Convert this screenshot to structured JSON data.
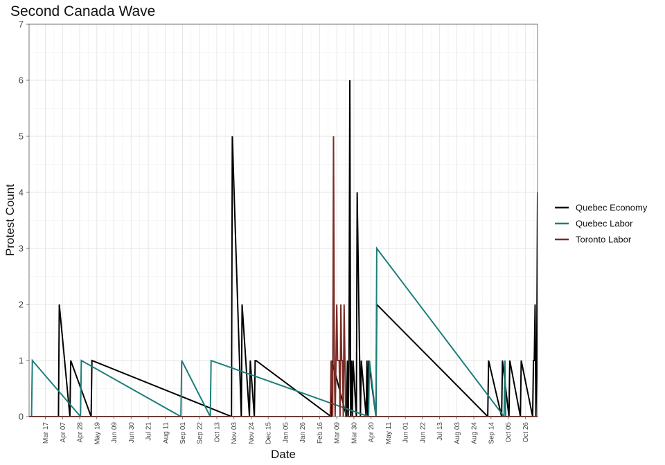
{
  "chart_data": {
    "type": "line",
    "title": "Second Canada Wave",
    "xlabel": "Date",
    "ylabel": "Protest Count",
    "ylim": [
      0,
      7
    ],
    "yticks": [
      0,
      1,
      2,
      3,
      4,
      5,
      6,
      7
    ],
    "xlim": [
      "2012-02-26",
      "2013-11-10"
    ],
    "xticks": [
      {
        "date": "2012-03-17",
        "label": "Mar 17"
      },
      {
        "date": "2012-04-07",
        "label": "Apr 07"
      },
      {
        "date": "2012-04-28",
        "label": "Apr 28"
      },
      {
        "date": "2012-05-19",
        "label": "May 19"
      },
      {
        "date": "2012-06-09",
        "label": "Jun 09"
      },
      {
        "date": "2012-06-30",
        "label": "Jun 30"
      },
      {
        "date": "2012-07-21",
        "label": "Jul 21"
      },
      {
        "date": "2012-08-11",
        "label": "Aug 11"
      },
      {
        "date": "2012-09-01",
        "label": "Sep 01"
      },
      {
        "date": "2012-09-22",
        "label": "Sep 22"
      },
      {
        "date": "2012-10-13",
        "label": "Oct 13"
      },
      {
        "date": "2012-11-03",
        "label": "Nov 03"
      },
      {
        "date": "2012-11-24",
        "label": "Nov 24"
      },
      {
        "date": "2012-12-15",
        "label": "Dec 15"
      },
      {
        "date": "2013-01-05",
        "label": "Jan 05"
      },
      {
        "date": "2013-01-26",
        "label": "Jan 26"
      },
      {
        "date": "2013-02-16",
        "label": "Feb 16"
      },
      {
        "date": "2013-03-09",
        "label": "Mar 09"
      },
      {
        "date": "2013-03-30",
        "label": "Mar 30"
      },
      {
        "date": "2013-04-20",
        "label": "Apr 20"
      },
      {
        "date": "2013-05-11",
        "label": "May 11"
      },
      {
        "date": "2013-06-01",
        "label": "Jun 01"
      },
      {
        "date": "2013-06-22",
        "label": "Jun 22"
      },
      {
        "date": "2013-07-13",
        "label": "Jul 13"
      },
      {
        "date": "2013-08-03",
        "label": "Aug 03"
      },
      {
        "date": "2013-08-24",
        "label": "Aug 24"
      },
      {
        "date": "2013-09-14",
        "label": "Sep 14"
      },
      {
        "date": "2013-10-05",
        "label": "Oct 05"
      },
      {
        "date": "2013-10-26",
        "label": "Oct 26"
      }
    ],
    "grid": true,
    "legend_position": "right",
    "series": [
      {
        "name": "Quebec Economy",
        "color": "#000000",
        "points": [
          {
            "date": "2012-04-03",
            "value": 2
          },
          {
            "date": "2012-04-17",
            "value": 1
          },
          {
            "date": "2012-05-13",
            "value": 1
          },
          {
            "date": "2012-11-01",
            "value": 5
          },
          {
            "date": "2012-11-13",
            "value": 2
          },
          {
            "date": "2012-11-23",
            "value": 1
          },
          {
            "date": "2012-11-29",
            "value": 1
          },
          {
            "date": "2012-11-30",
            "value": 1
          },
          {
            "date": "2013-03-03",
            "value": 1
          },
          {
            "date": "2013-03-22",
            "value": 1
          },
          {
            "date": "2013-03-24",
            "value": 1
          },
          {
            "date": "2013-03-25",
            "value": 6
          },
          {
            "date": "2013-03-27",
            "value": 1
          },
          {
            "date": "2013-03-29",
            "value": 1
          },
          {
            "date": "2013-04-03",
            "value": 4
          },
          {
            "date": "2013-04-08",
            "value": 1
          },
          {
            "date": "2013-04-15",
            "value": 1
          },
          {
            "date": "2013-04-17",
            "value": 1
          },
          {
            "date": "2013-04-27",
            "value": 2
          },
          {
            "date": "2013-09-11",
            "value": 1
          },
          {
            "date": "2013-09-28",
            "value": 1
          },
          {
            "date": "2013-10-07",
            "value": 1
          },
          {
            "date": "2013-10-21",
            "value": 1
          },
          {
            "date": "2013-11-05",
            "value": 1
          },
          {
            "date": "2013-11-06",
            "value": 1
          },
          {
            "date": "2013-11-07",
            "value": 2
          },
          {
            "date": "2013-11-09",
            "value": 1
          },
          {
            "date": "2013-11-10",
            "value": 4
          }
        ]
      },
      {
        "name": "Quebec Labor",
        "color": "#1b7f7a",
        "points": [
          {
            "date": "2012-03-01",
            "value": 1
          },
          {
            "date": "2012-04-30",
            "value": 1
          },
          {
            "date": "2012-08-31",
            "value": 1
          },
          {
            "date": "2012-10-06",
            "value": 1
          },
          {
            "date": "2013-04-18",
            "value": 1
          },
          {
            "date": "2013-04-27",
            "value": 3
          },
          {
            "date": "2013-10-01",
            "value": 1
          }
        ]
      },
      {
        "name": "Toronto Labor",
        "color": "#7b2d26",
        "points": [
          {
            "date": "2013-03-02",
            "value": 1
          },
          {
            "date": "2013-03-05",
            "value": 5
          },
          {
            "date": "2013-03-06",
            "value": 1
          },
          {
            "date": "2013-03-08",
            "value": 1
          },
          {
            "date": "2013-03-09",
            "value": 2
          },
          {
            "date": "2013-03-10",
            "value": 1
          },
          {
            "date": "2013-03-11",
            "value": 1
          },
          {
            "date": "2013-03-12",
            "value": 1
          },
          {
            "date": "2013-03-14",
            "value": 2
          },
          {
            "date": "2013-03-15",
            "value": 1
          },
          {
            "date": "2013-03-16",
            "value": 1
          },
          {
            "date": "2013-03-18",
            "value": 2
          },
          {
            "date": "2013-03-19",
            "value": 1
          }
        ]
      }
    ]
  }
}
